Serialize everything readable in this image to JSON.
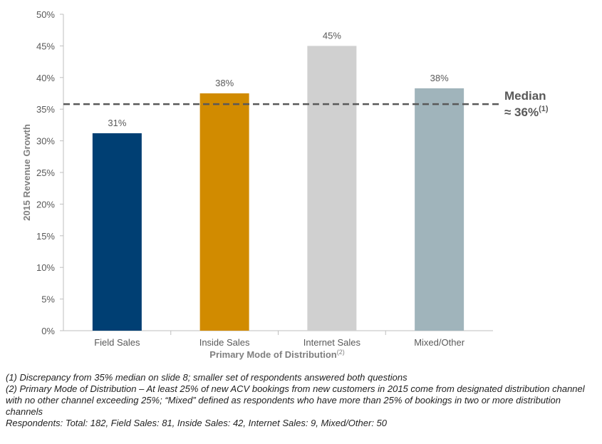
{
  "chart_data": {
    "type": "bar",
    "categories": [
      "Field Sales",
      "Inside Sales",
      "Internet Sales",
      "Mixed/Other"
    ],
    "values": [
      31.2,
      37.5,
      45.0,
      38.3
    ],
    "value_labels": [
      "31%",
      "38%",
      "45%",
      "38%"
    ],
    "colors": [
      "#003f73",
      "#d18b00",
      "#d0d0d0",
      "#a0b4bb"
    ],
    "ylabel": "2015 Revenue Growth",
    "xlabel": "Primary Mode of Distribution",
    "xlabel_superscript": "(2)",
    "ylim": [
      0,
      50
    ],
    "yticks": [
      0,
      5,
      10,
      15,
      20,
      25,
      30,
      35,
      40,
      45,
      50
    ],
    "ytick_suffix": "%",
    "grid": false,
    "reference_line": {
      "value": 35.8,
      "style": "dashed",
      "color": "#595959",
      "label_line1": "Median",
      "label_line2": "≈ 36%",
      "label_superscript": "(1)"
    }
  },
  "footnotes": [
    "(1) Discrepancy from 35% median on slide 8; smaller set of respondents answered both questions",
    "(2) Primary Mode of Distribution – At least 25% of new ACV bookings from new customers in 2015 come from designated distribution channel with no other channel exceeding 25%; “Mixed” defined as respondents who have more than 25% of bookings in two or more distribution channels",
    "Respondents: Total: 182, Field Sales: 81, Inside Sales: 42, Internet Sales: 9, Mixed/Other: 50"
  ]
}
